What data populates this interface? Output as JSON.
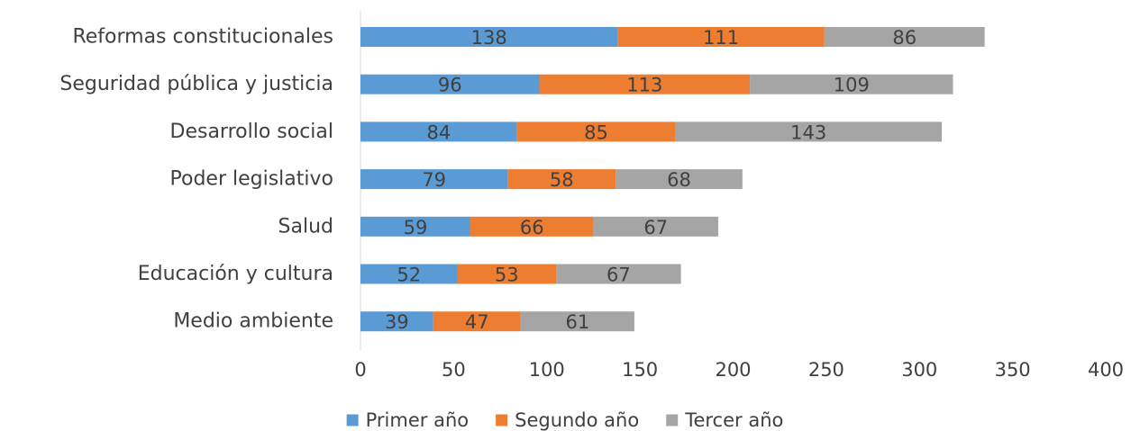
{
  "chart_data": {
    "type": "bar",
    "orientation": "horizontal",
    "stacked": true,
    "categories": [
      "Reformas constitucionales",
      "Seguridad pública y justicia",
      "Desarrollo social",
      "Poder legislativo",
      "Salud",
      "Educación y cultura",
      "Medio ambiente"
    ],
    "series": [
      {
        "name": "Primer año",
        "color": "#5B9BD5",
        "values": [
          138,
          96,
          84,
          79,
          59,
          52,
          39
        ]
      },
      {
        "name": "Segundo año",
        "color": "#ED7D31",
        "values": [
          111,
          113,
          85,
          58,
          66,
          53,
          47
        ]
      },
      {
        "name": "Tercer año",
        "color": "#A5A5A5",
        "values": [
          86,
          109,
          143,
          68,
          67,
          67,
          61
        ]
      }
    ],
    "xlim": [
      0,
      400
    ],
    "x_ticks": [
      "0",
      "50",
      "100",
      "150",
      "200",
      "250",
      "300",
      "350",
      "400"
    ],
    "data_labels": true,
    "grid": false,
    "legend_position": "bottom"
  }
}
